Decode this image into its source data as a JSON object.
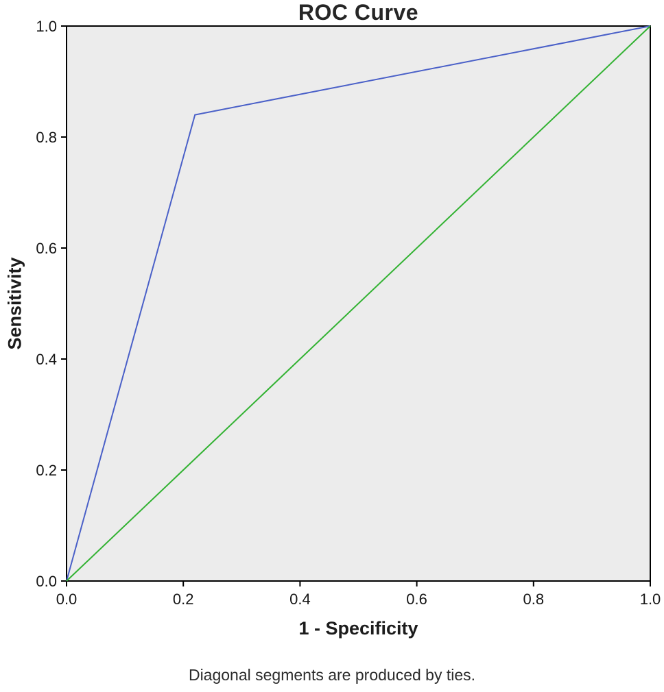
{
  "chart_data": {
    "type": "line",
    "title": "ROC Curve",
    "xlabel": "1 - Specificity",
    "ylabel": "Sensitivity",
    "footnote": "Diagonal segments are produced by ties.",
    "xlim": [
      0.0,
      1.0
    ],
    "ylim": [
      0.0,
      1.0
    ],
    "xticks": [
      0.0,
      0.2,
      0.4,
      0.6,
      0.8,
      1.0
    ],
    "yticks": [
      0.0,
      0.2,
      0.4,
      0.6,
      0.8,
      1.0
    ],
    "xtick_labels": [
      "0.0",
      "0.2",
      "0.4",
      "0.6",
      "0.8",
      "1.0"
    ],
    "ytick_labels": [
      "0.0",
      "0.2",
      "0.4",
      "0.6",
      "0.8",
      "1.0"
    ],
    "grid": false,
    "legend": "none",
    "plot_bg_color": "#ececec",
    "axis_color": "#000000",
    "series": [
      {
        "name": "roc-curve",
        "color": "#4a60c8",
        "x": [
          0.0,
          0.22,
          1.0
        ],
        "y": [
          0.0,
          0.84,
          1.0
        ]
      },
      {
        "name": "reference-diagonal",
        "color": "#32b232",
        "x": [
          0.0,
          1.0
        ],
        "y": [
          0.0,
          1.0
        ]
      }
    ]
  }
}
